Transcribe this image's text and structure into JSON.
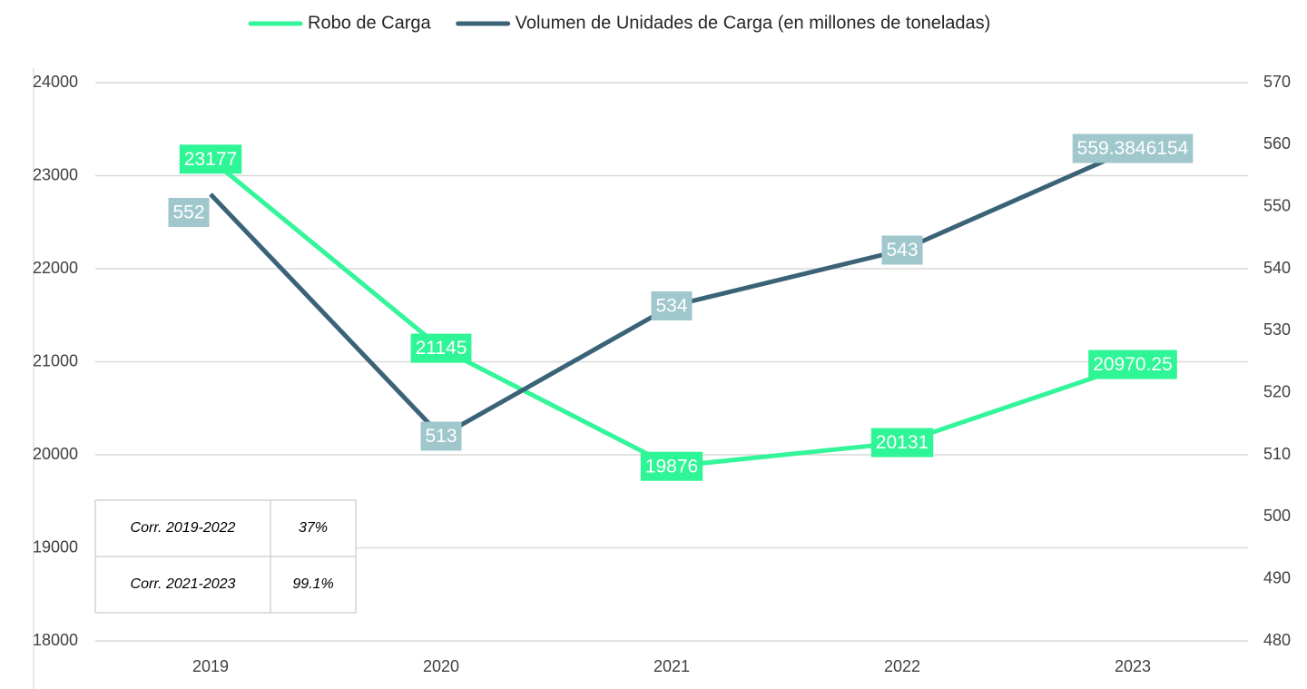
{
  "chart_data": {
    "type": "line",
    "categories": [
      "2019",
      "2020",
      "2021",
      "2022",
      "2023"
    ],
    "series": [
      {
        "name": "Robo de Carga",
        "color": "#33f59a",
        "label_color": "#2ef595",
        "values": [
          23177,
          21145,
          19876,
          20131,
          20970.25
        ]
      },
      {
        "name": "Volumen de Unidades de Carga (en millones de toneladas)",
        "color": "#3b6378",
        "label_color": "#9fc7cc",
        "axis": "y2",
        "values": [
          552,
          513,
          534,
          543,
          559.3846154
        ]
      }
    ],
    "ylim": [
      18000,
      24000
    ],
    "yticks": [
      18000,
      19000,
      20000,
      21000,
      22000,
      23000,
      24000
    ],
    "y2lim": [
      480,
      570
    ],
    "y2ticks": [
      480,
      490,
      500,
      510,
      520,
      530,
      540,
      550,
      560,
      570
    ],
    "grid": true,
    "legend": "top"
  },
  "table": {
    "rows": [
      [
        "Corr. 2019-2022",
        "37%"
      ],
      [
        "Corr. 2021-2023",
        "99.1%"
      ]
    ]
  }
}
